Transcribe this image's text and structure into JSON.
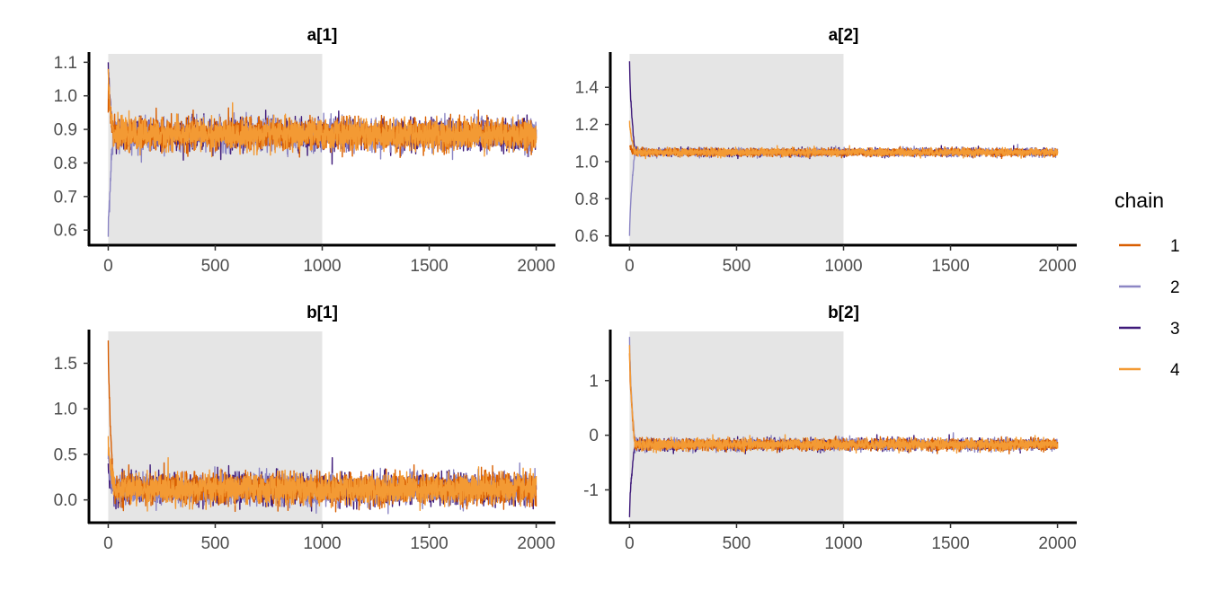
{
  "chart_data": {
    "type": "line",
    "legend": {
      "title": "chain",
      "position": "right",
      "entries": [
        {
          "label": "1",
          "color": "#d95f02"
        },
        {
          "label": "2",
          "color": "#8c86c4"
        },
        {
          "label": "3",
          "color": "#3f1a7a"
        },
        {
          "label": "4",
          "color": "#f39a34"
        }
      ]
    },
    "panels": [
      {
        "title": "a[1]",
        "xlim": [
          -90,
          2090
        ],
        "ylim": [
          0.555,
          1.125
        ],
        "xticks": [
          "0",
          "500",
          "1000",
          "1500",
          "2000"
        ],
        "yticks": [
          "0.6",
          "0.7",
          "0.8",
          "0.9",
          "1.0",
          "1.1"
        ],
        "warmup_shading": [
          0,
          1000
        ],
        "series": [
          {
            "chain": "1",
            "start": 0.95,
            "start_peak": 1.05,
            "steady_mean": 0.885,
            "steady_sd": 0.022
          },
          {
            "chain": "2",
            "start": 0.58,
            "start_peak": 0.58,
            "steady_mean": 0.885,
            "steady_sd": 0.022
          },
          {
            "chain": "3",
            "start": 1.1,
            "start_peak": 1.1,
            "steady_mean": 0.885,
            "steady_sd": 0.022
          },
          {
            "chain": "4",
            "start": 1.08,
            "start_peak": 1.08,
            "steady_mean": 0.885,
            "steady_sd": 0.022
          }
        ]
      },
      {
        "title": "a[2]",
        "xlim": [
          -90,
          2090
        ],
        "ylim": [
          0.55,
          1.58
        ],
        "xticks": [
          "0",
          "500",
          "1000",
          "1500",
          "2000"
        ],
        "yticks": [
          "0.6",
          "0.8",
          "1.0",
          "1.2",
          "1.4"
        ],
        "warmup_shading": [
          0,
          1000
        ],
        "series": [
          {
            "chain": "1",
            "start": 1.08,
            "start_peak": 1.08,
            "steady_mean": 1.05,
            "steady_sd": 0.01
          },
          {
            "chain": "2",
            "start": 0.6,
            "start_peak": 0.6,
            "steady_mean": 1.05,
            "steady_sd": 0.01
          },
          {
            "chain": "3",
            "start": 1.54,
            "start_peak": 1.54,
            "steady_mean": 1.05,
            "steady_sd": 0.01
          },
          {
            "chain": "4",
            "start": 1.22,
            "start_peak": 1.22,
            "steady_mean": 1.05,
            "steady_sd": 0.01
          }
        ]
      },
      {
        "title": "b[1]",
        "xlim": [
          -90,
          2090
        ],
        "ylim": [
          -0.25,
          1.85
        ],
        "xticks": [
          "0",
          "500",
          "1000",
          "1500",
          "2000"
        ],
        "yticks": [
          "0.0",
          "0.5",
          "1.0",
          "1.5"
        ],
        "warmup_shading": [
          0,
          1000
        ],
        "series": [
          {
            "chain": "1",
            "start": 1.75,
            "start_peak": 1.75,
            "steady_mean": 0.12,
            "steady_sd": 0.08
          },
          {
            "chain": "2",
            "start": 0.45,
            "start_peak": 0.45,
            "steady_mean": 0.12,
            "steady_sd": 0.08
          },
          {
            "chain": "3",
            "start": 0.4,
            "start_peak": 0.4,
            "steady_mean": 0.12,
            "steady_sd": 0.08
          },
          {
            "chain": "4",
            "start": 0.7,
            "start_peak": 0.7,
            "steady_mean": 0.12,
            "steady_sd": 0.08
          }
        ]
      },
      {
        "title": "b[2]",
        "xlim": [
          -90,
          2090
        ],
        "ylim": [
          -1.6,
          1.9
        ],
        "xticks": [
          "0",
          "500",
          "1000",
          "1500",
          "2000"
        ],
        "yticks": [
          "-1",
          "0",
          "1"
        ],
        "warmup_shading": [
          0,
          1000
        ],
        "series": [
          {
            "chain": "1",
            "start": 1.5,
            "start_peak": 1.5,
            "steady_mean": -0.17,
            "steady_sd": 0.05
          },
          {
            "chain": "2",
            "start": 1.8,
            "start_peak": 1.8,
            "steady_mean": -0.17,
            "steady_sd": 0.05
          },
          {
            "chain": "3",
            "start": -1.5,
            "start_peak": -1.5,
            "steady_mean": -0.17,
            "steady_sd": 0.05
          },
          {
            "chain": "4",
            "start": 1.65,
            "start_peak": 1.65,
            "steady_mean": -0.17,
            "steady_sd": 0.05
          }
        ]
      }
    ],
    "iterations": 2000,
    "shaded_region_color": "#e5e5e5"
  }
}
